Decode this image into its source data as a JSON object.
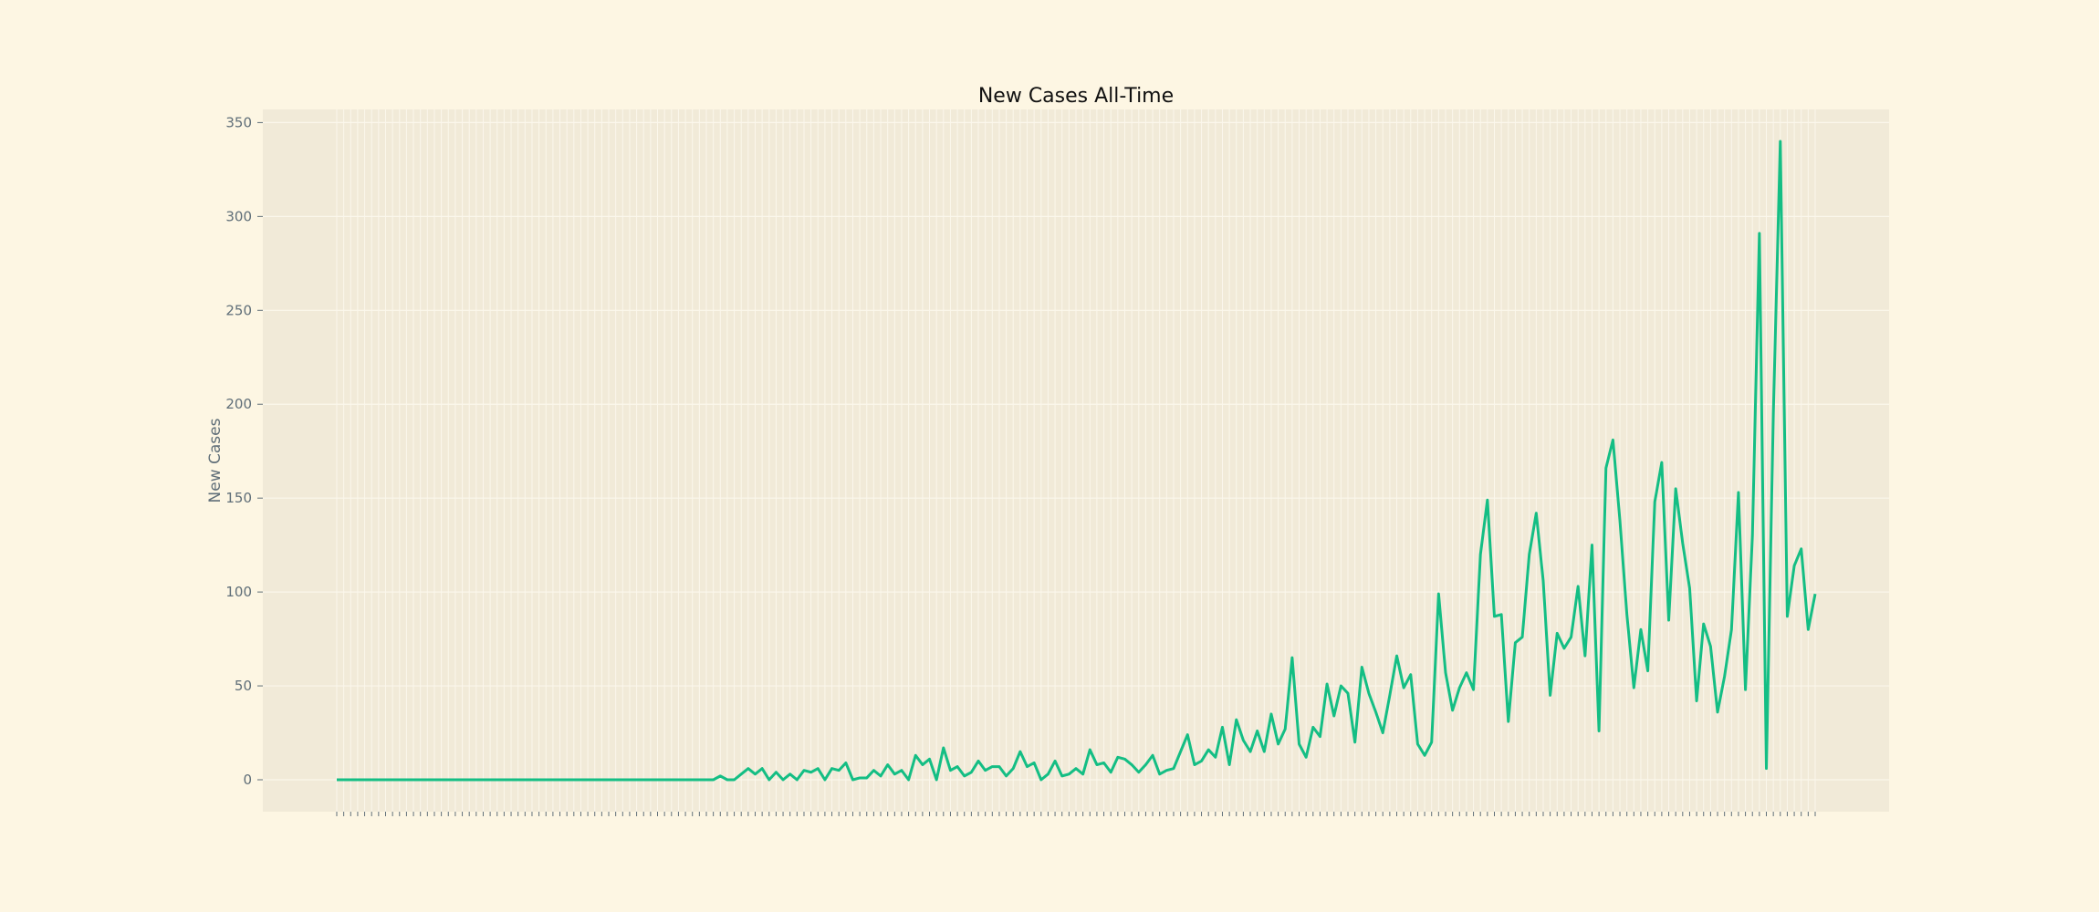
{
  "colors": {
    "page_background": "#fdf6e3",
    "plot_background": "#f1ead8",
    "grid": "#fbf7ec",
    "line": "#14be84",
    "tick_text": "#5f6e78",
    "title_text": "#111111"
  },
  "chart_data": {
    "type": "line",
    "title": "New Cases All-Time",
    "xlabel": "",
    "ylabel": "New Cases",
    "ylim": [
      -17,
      357
    ],
    "yticks": [
      0,
      50,
      100,
      150,
      200,
      250,
      300,
      350
    ],
    "grid": true,
    "x_tick_labels": "not legible (one unlabeled tick per day)",
    "series": [
      {
        "values": [
          0,
          0,
          0,
          0,
          0,
          0,
          0,
          0,
          0,
          0,
          0,
          0,
          0,
          0,
          0,
          0,
          0,
          0,
          0,
          0,
          0,
          0,
          0,
          0,
          0,
          0,
          0,
          0,
          0,
          0,
          0,
          0,
          0,
          0,
          0,
          0,
          0,
          0,
          0,
          0,
          0,
          0,
          0,
          0,
          0,
          0,
          0,
          0,
          0,
          0,
          0,
          0,
          0,
          0,
          0,
          2,
          0,
          0,
          3,
          6,
          3,
          6,
          0,
          4,
          0,
          3,
          0,
          5,
          4,
          6,
          0,
          6,
          5,
          9,
          0,
          1,
          1,
          5,
          2,
          8,
          3,
          5,
          0,
          13,
          8,
          11,
          0,
          17,
          5,
          7,
          2,
          4,
          10,
          5,
          7,
          7,
          2,
          6,
          15,
          7,
          9,
          0,
          3,
          10,
          2,
          3,
          6,
          3,
          16,
          8,
          9,
          4,
          12,
          11,
          8,
          4,
          8,
          13,
          3,
          5,
          6,
          15,
          24,
          8,
          10,
          16,
          12,
          28,
          8,
          32,
          21,
          15,
          26,
          15,
          35,
          19,
          27,
          65,
          19,
          12,
          28,
          23,
          51,
          34,
          50,
          46,
          20,
          60,
          46,
          36,
          25,
          45,
          66,
          49,
          56,
          19,
          13,
          20,
          99,
          57,
          37,
          49,
          57,
          48,
          120,
          149,
          87,
          88,
          31,
          73,
          76,
          120,
          142,
          106,
          45,
          78,
          70,
          76,
          103,
          66,
          125,
          26,
          166,
          181,
          138,
          88,
          49,
          80,
          58,
          148,
          169,
          85,
          155,
          126,
          102,
          42,
          83,
          71,
          36,
          55,
          80,
          153,
          48,
          130,
          291,
          6,
          195,
          340,
          87,
          114,
          123,
          80,
          99
        ]
      }
    ]
  }
}
